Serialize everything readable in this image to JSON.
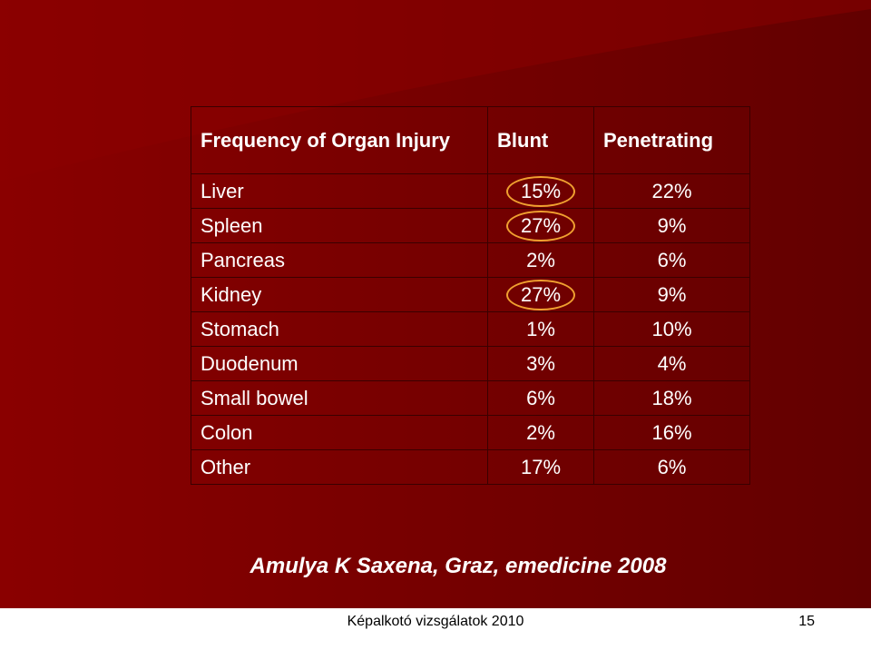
{
  "table": {
    "headers": {
      "organ": "Frequency of Organ Injury",
      "blunt": "Blunt",
      "penetrating": "Penetrating"
    },
    "rows": [
      {
        "organ": "Liver",
        "blunt": "15%",
        "penetrating": "22%",
        "blunt_circled": true
      },
      {
        "organ": "Spleen",
        "blunt": "27%",
        "penetrating": "9%",
        "blunt_circled": true
      },
      {
        "organ": "Pancreas",
        "blunt": "2%",
        "penetrating": "6%",
        "blunt_circled": false
      },
      {
        "organ": "Kidney",
        "blunt": "27%",
        "penetrating": "9%",
        "blunt_circled": true
      },
      {
        "organ": "Stomach",
        "blunt": "1%",
        "penetrating": "10%",
        "blunt_circled": false
      },
      {
        "organ": "Duodenum",
        "blunt": "3%",
        "penetrating": "4%",
        "blunt_circled": false
      },
      {
        "organ": "Small bowel",
        "blunt": "6%",
        "penetrating": "18%",
        "blunt_circled": false
      },
      {
        "organ": "Colon",
        "blunt": "2%",
        "penetrating": "16%",
        "blunt_circled": false
      },
      {
        "organ": "Other",
        "blunt": "17%",
        "penetrating": "6%",
        "blunt_circled": false
      }
    ]
  },
  "citation": "Amulya K Saxena, Graz, emedicine 2008",
  "footer": {
    "text": "Képalkotó vizsgálatok 2010",
    "page_number": "15"
  },
  "colors": {
    "background": "#6e0000",
    "text": "#ffffff",
    "highlight_circle": "#f0a030"
  }
}
